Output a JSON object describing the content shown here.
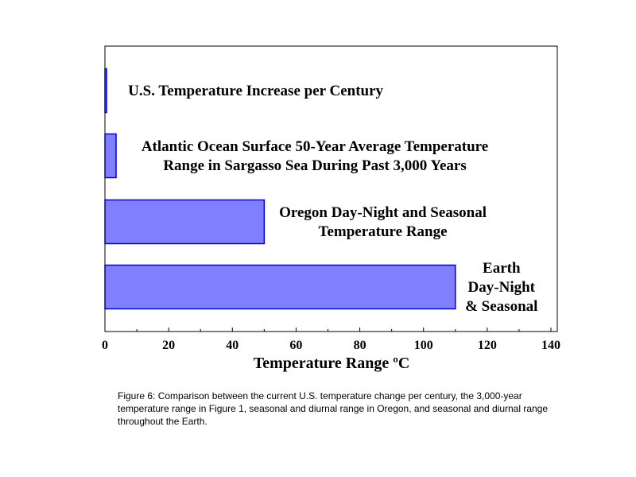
{
  "chart_data": {
    "type": "bar",
    "orientation": "horizontal",
    "categories": [
      [
        "U.S. Temperature Increase per Century"
      ],
      [
        "Atlantic Ocean Surface 50-Year Average Temperature",
        "Range in Sargasso Sea During Past 3,000 Years"
      ],
      [
        "Oregon Day-Night and Seasonal",
        "Temperature Range"
      ],
      [
        "Earth",
        "Day-Night",
        "& Seasonal"
      ]
    ],
    "values": [
      0.5,
      3.5,
      50,
      110
    ],
    "xlabel": "Temperature Range ºC",
    "xlim": [
      0,
      142
    ],
    "xticks": [
      0,
      20,
      40,
      60,
      80,
      100,
      120,
      140
    ],
    "grid": false,
    "colors": {
      "bar_fill": "#8080ff",
      "bar_stroke": "#0000cc",
      "axis": "#000000"
    }
  },
  "caption": "Figure 6: Comparison between the current U.S. temperature change per century, the 3,000-year temperature range in Figure 1, seasonal and diurnal range in Oregon, and seasonal and diurnal range throughout the Earth."
}
